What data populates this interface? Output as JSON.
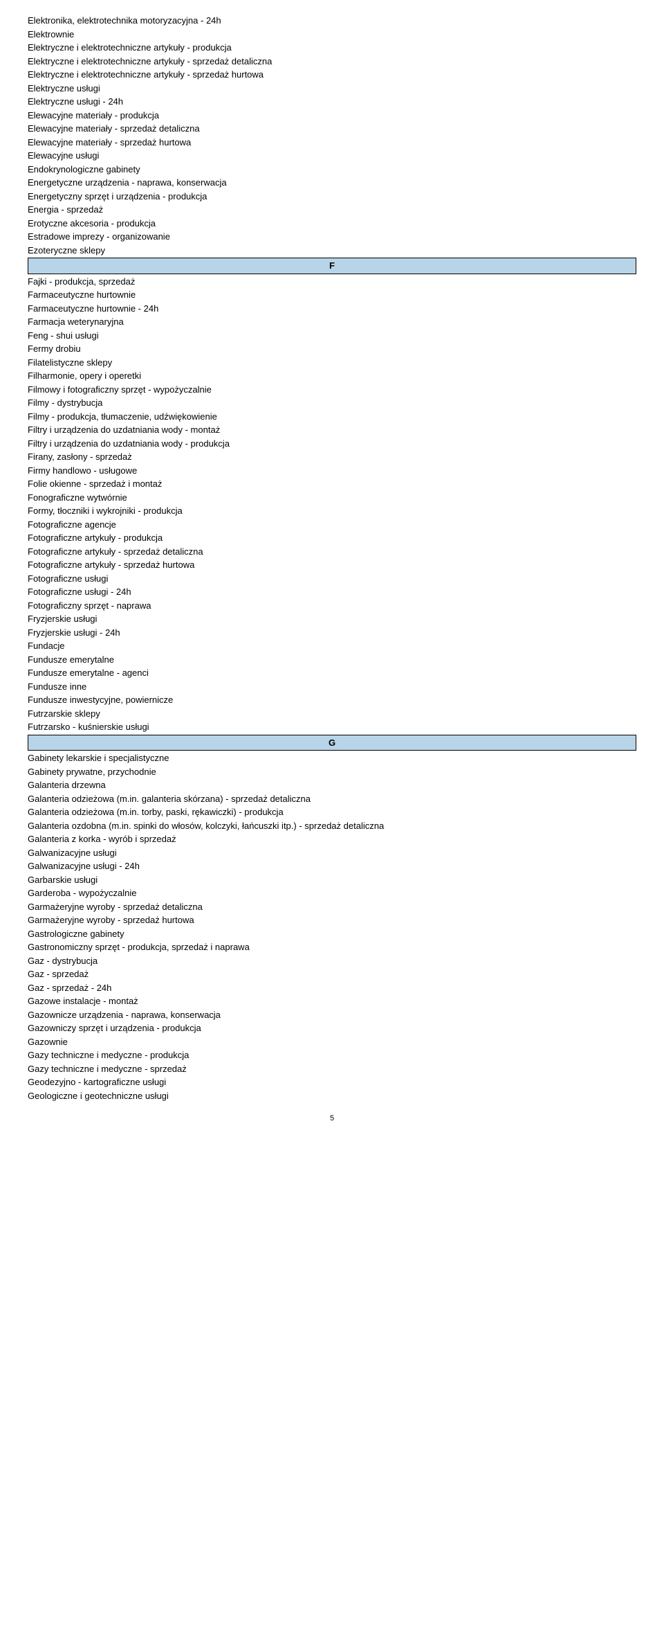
{
  "sections": {
    "E": {
      "items": [
        "Elektronika, elektrotechnika motoryzacyjna - 24h",
        "Elektrownie",
        "Elektryczne i elektrotechniczne artykuły - produkcja",
        "Elektryczne i elektrotechniczne artykuły - sprzedaż detaliczna",
        "Elektryczne i elektrotechniczne artykuły - sprzedaż hurtowa",
        "Elektryczne usługi",
        "Elektryczne usługi - 24h",
        "Elewacyjne materiały - produkcja",
        "Elewacyjne materiały - sprzedaż detaliczna",
        "Elewacyjne materiały - sprzedaż hurtowa",
        "Elewacyjne usługi",
        "Endokrynologiczne gabinety",
        "Energetyczne urządzenia - naprawa, konserwacja",
        "Energetyczny sprzęt i urządzenia - produkcja",
        "Energia - sprzedaż",
        "Erotyczne akcesoria - produkcja",
        "Estradowe imprezy - organizowanie",
        "Ezoteryczne sklepy"
      ]
    },
    "F": {
      "header": "F",
      "items": [
        "Fajki - produkcja, sprzedaż",
        "Farmaceutyczne hurtownie",
        "Farmaceutyczne hurtownie - 24h",
        "Farmacja weterynaryjna",
        "Feng - shui usługi",
        "Fermy drobiu",
        "Filatelistyczne sklepy",
        "Filharmonie, opery i operetki",
        "Filmowy i fotograficzny sprzęt - wypożyczalnie",
        "Filmy - dystrybucja",
        "Filmy - produkcja, tłumaczenie, udźwiękowienie",
        "Filtry i urządzenia do uzdatniania wody - montaż",
        "Filtry i urządzenia do uzdatniania wody - produkcja",
        "Firany, zasłony - sprzedaż",
        "Firmy handlowo - usługowe",
        "Folie okienne - sprzedaż i montaż",
        "Fonograficzne wytwórnie",
        "Formy, tłoczniki i wykrojniki - produkcja",
        "Fotograficzne agencje",
        "Fotograficzne artykuły - produkcja",
        "Fotograficzne artykuły - sprzedaż detaliczna",
        "Fotograficzne artykuły - sprzedaż hurtowa",
        "Fotograficzne usługi",
        "Fotograficzne usługi - 24h",
        "Fotograficzny sprzęt - naprawa",
        "Fryzjerskie usługi",
        "Fryzjerskie usługi - 24h",
        "Fundacje",
        "Fundusze emerytalne",
        "Fundusze emerytalne - agenci",
        "Fundusze inne",
        "Fundusze inwestycyjne, powiernicze",
        "Futrzarskie sklepy",
        "Futrzarsko - kuśnierskie usługi"
      ]
    },
    "G": {
      "header": "G",
      "items": [
        "Gabinety lekarskie i specjalistyczne",
        "Gabinety prywatne, przychodnie",
        "Galanteria drzewna",
        "Galanteria odzieżowa (m.in. galanteria skórzana) - sprzedaż detaliczna",
        "Galanteria odzieżowa (m.in. torby, paski, rękawiczki) - produkcja",
        "Galanteria ozdobna (m.in. spinki do włosów, kolczyki, łańcuszki itp.) - sprzedaż detaliczna",
        "Galanteria z korka - wyrób i sprzedaż",
        "Galwanizacyjne usługi",
        "Galwanizacyjne usługi - 24h",
        "Garbarskie usługi",
        "Garderoba - wypożyczalnie",
        "Garmażeryjne wyroby - sprzedaż detaliczna",
        "Garmażeryjne wyroby - sprzedaż hurtowa",
        "Gastrologiczne gabinety",
        "Gastronomiczny sprzęt - produkcja, sprzedaż i naprawa",
        "Gaz - dystrybucja",
        "Gaz - sprzedaż",
        "Gaz - sprzedaż - 24h",
        "Gazowe instalacje - montaż",
        "Gazownicze urządzenia - naprawa, konserwacja",
        "Gazowniczy sprzęt i urządzenia - produkcja",
        "Gazownie",
        "Gazy techniczne i medyczne - produkcja",
        "Gazy techniczne i medyczne - sprzedaż",
        "Geodezyjno - kartograficzne usługi",
        "Geologiczne i geotechniczne usługi"
      ]
    }
  },
  "pageNumber": "5"
}
